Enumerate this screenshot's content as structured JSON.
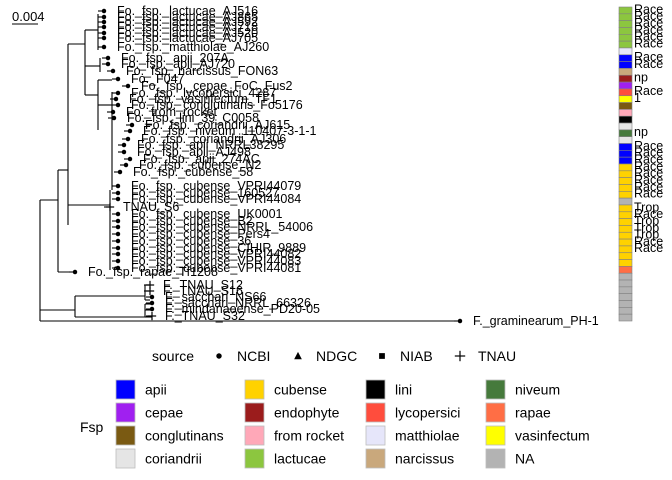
{
  "chart_data": {
    "type": "phylogenetic-tree",
    "scale_bar_label": "0.004",
    "tips": [
      {
        "label": "Fo._fsp._lactucae_AJ516",
        "source": "NCBI",
        "fsp": "lactucae",
        "strip_text": "Race"
      },
      {
        "label": "Fo._fsp._lactucae_AJ865",
        "source": "NCBI",
        "fsp": "lactucae",
        "strip_text": "Race"
      },
      {
        "label": "Fo._fsp._lactucae_AJ592",
        "source": "NCBI",
        "fsp": "lactucae",
        "strip_text": "Race"
      },
      {
        "label": "Fo._fsp._lactucae_AJ718",
        "source": "NCBI",
        "fsp": "lactucae",
        "strip_text": "Race"
      },
      {
        "label": "Fo._fsp._lactucae_AJ520",
        "source": "NCBI",
        "fsp": "lactucae",
        "strip_text": "Race"
      },
      {
        "label": "Fo._fsp._lactucae_AJ705",
        "source": "NCBI",
        "fsp": "lactucae",
        "strip_text": "Race"
      },
      {
        "label": "Fo._fsp._matthiolae_AJ260",
        "source": "NCBI",
        "fsp": "matthiolae",
        "strip_text": ""
      },
      {
        "label": "Fo._fsp._apii_207A",
        "source": "NCBI",
        "fsp": "apii",
        "strip_text": "Race"
      },
      {
        "label": "Fo._fsp._apii_AJ720",
        "source": "NCBI",
        "fsp": "apii",
        "strip_text": "Race"
      },
      {
        "label": "Fo._fsp._narcissus_FON63",
        "source": "NCBI",
        "fsp": "narcissus",
        "strip_text": ""
      },
      {
        "label": "Fo._F047",
        "source": "NCBI",
        "fsp": "endophyte",
        "strip_text": "np"
      },
      {
        "label": "Fo._fsp._cepae_FoC_Fus2",
        "source": "NCBI",
        "fsp": "cepae",
        "strip_text": ""
      },
      {
        "label": "Fo._fsp._lycopersici_4287",
        "source": "NCBI",
        "fsp": "lycopersici",
        "strip_text": "Race"
      },
      {
        "label": "Fo._fsp._vasinfectum_TF1",
        "source": "NCBI",
        "fsp": "vasinfectum",
        "strip_text": "1"
      },
      {
        "label": "Fo._fsp._conglutinans_Fo5176",
        "source": "NCBI",
        "fsp": "conglutinans",
        "strip_text": ""
      },
      {
        "label": "Fo._from_rocket",
        "source": "NCBI",
        "fsp": "from rocket",
        "strip_text": ""
      },
      {
        "label": "Fo._fsp._lini_39_C0058",
        "source": "NCBI",
        "fsp": "lini",
        "strip_text": ""
      },
      {
        "label": "Fo._fsp._coriandrii_AJ615",
        "source": "NCBI",
        "fsp": "coriandrii",
        "strip_text": ""
      },
      {
        "label": "Fo._fsp._niveum_110407-3-1-1",
        "source": "NCBI",
        "fsp": "niveum",
        "strip_text": "np"
      },
      {
        "label": "Fo._fsp._coriandrii_AJ306",
        "source": "NCBI",
        "fsp": "coriandrii",
        "strip_text": ""
      },
      {
        "label": "Fo._fsp._apii_NRRL38295",
        "source": "NCBI",
        "fsp": "apii",
        "strip_text": "Race"
      },
      {
        "label": "Fo._fsp._apii_AJ498",
        "source": "NCBI",
        "fsp": "apii",
        "strip_text": "Race"
      },
      {
        "label": "Fo._fsp._apii_274AC",
        "source": "NCBI",
        "fsp": "apii",
        "strip_text": "Race"
      },
      {
        "label": "Fo._fsp._cubense_N2",
        "source": "NCBI",
        "fsp": "cubense",
        "strip_text": "Race"
      },
      {
        "label": "Fo._fsp._cubense_58",
        "source": "NCBI",
        "fsp": "cubense",
        "strip_text": "Race"
      },
      {
        "label": "Fo._fsp._cubense_VPRI44079",
        "source": "NCBI",
        "fsp": "cubense",
        "strip_text": "Race"
      },
      {
        "label": "Fo._fsp._cubense_160527",
        "source": "NCBI",
        "fsp": "cubense",
        "strip_text": "Race"
      },
      {
        "label": "Fo._fsp._cubense_VPRI44084",
        "source": "NCBI",
        "fsp": "cubense",
        "strip_text": "Race"
      },
      {
        "label": "TNAU_S6",
        "source": "TNAU",
        "fsp": "NA",
        "strip_text": ""
      },
      {
        "label": "Fo._fsp._cubense_UK0001",
        "source": "NCBI",
        "fsp": "cubense",
        "strip_text": "Trop"
      },
      {
        "label": "Fo._fsp._cubense_B2",
        "source": "NCBI",
        "fsp": "cubense",
        "strip_text": "Race"
      },
      {
        "label": "Fo._fsp._cubense_NRRL_54006",
        "source": "NCBI",
        "fsp": "cubense",
        "strip_text": "Trop"
      },
      {
        "label": "Fo._fsp._cubense_Pers4",
        "source": "NCBI",
        "fsp": "cubense",
        "strip_text": "Trop"
      },
      {
        "label": "Fo._fsp._cubense_36",
        "source": "NCBI",
        "fsp": "cubense",
        "strip_text": "Trop"
      },
      {
        "label": "Fo._fsp._cubense_CIHIR_9889",
        "source": "NCBI",
        "fsp": "cubense",
        "strip_text": "Race"
      },
      {
        "label": "Fo._fsp._cubense_VPRI44082",
        "source": "NCBI",
        "fsp": "cubense",
        "strip_text": "Race"
      },
      {
        "label": "Fo._fsp._cubense_VPRI44083",
        "source": "NCBI",
        "fsp": "cubense",
        "strip_text": ""
      },
      {
        "label": "Fo._fsp._cubense_VPRI44081",
        "source": "NCBI",
        "fsp": "cubense",
        "strip_text": ""
      },
      {
        "label": "Fo._fsp._rapae_Tf1208",
        "source": "NCBI",
        "fsp": "rapae",
        "strip_text": ""
      },
      {
        "label": "F._TNAU_S12",
        "source": "TNAU",
        "fsp": "NA",
        "strip_text": ""
      },
      {
        "label": "F._TNAU_S16",
        "source": "TNAU",
        "fsp": "NA",
        "strip_text": ""
      },
      {
        "label": "F._sacchari_NS66",
        "source": "NCBI",
        "fsp": "NA",
        "strip_text": ""
      },
      {
        "label": "F._sacchari_NRRL_66326",
        "source": "NCBI",
        "fsp": "NA",
        "strip_text": ""
      },
      {
        "label": "F._mindanaoense_PD20-05",
        "source": "NCBI",
        "fsp": "NA",
        "strip_text": ""
      },
      {
        "label": "F._TNAU_S32",
        "source": "TNAU",
        "fsp": "NA",
        "strip_text": ""
      },
      {
        "label": "F._graminearum_PH-1",
        "source": "NCBI",
        "fsp": "NA",
        "strip_text": ""
      }
    ],
    "legend_source": {
      "title": "source",
      "entries": [
        {
          "label": "NCBI",
          "shape": "circle"
        },
        {
          "label": "NDGC",
          "shape": "triangle"
        },
        {
          "label": "NIAB",
          "shape": "square"
        },
        {
          "label": "TNAU",
          "shape": "plus"
        }
      ]
    },
    "legend_fsp": {
      "title": "Fsp",
      "columns": [
        [
          {
            "label": "apii",
            "color": "#0000FF"
          },
          {
            "label": "cepae",
            "color": "#A020F0"
          },
          {
            "label": "conglutinans",
            "color": "#7A5A12"
          },
          {
            "label": "coriandrii",
            "color": "#E5E5E5"
          }
        ],
        [
          {
            "label": "cubense",
            "color": "#FFD200"
          },
          {
            "label": "endophyte",
            "color": "#9B1C1C"
          },
          {
            "label": "from rocket",
            "color": "#FFA8B8"
          },
          {
            "label": "lactucae",
            "color": "#8CC63F"
          }
        ],
        [
          {
            "label": "lini",
            "color": "#000000"
          },
          {
            "label": "lycopersici",
            "color": "#FF4D3D"
          },
          {
            "label": "matthiolae",
            "color": "#E6E6FA"
          },
          {
            "label": "narcissus",
            "color": "#C9A87C"
          }
        ],
        [
          {
            "label": "niveum",
            "color": "#467A3C"
          },
          {
            "label": "rapae",
            "color": "#FF6E45"
          },
          {
            "label": "vasinfectum",
            "color": "#FFFF00"
          },
          {
            "label": "NA",
            "color": "#B3B3B3"
          }
        ]
      ]
    }
  }
}
